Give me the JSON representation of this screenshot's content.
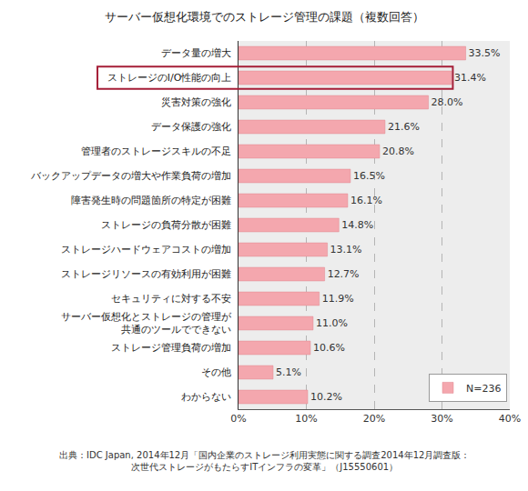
{
  "chart_data": {
    "type": "bar",
    "orientation": "horizontal",
    "title": "サーバー仮想化環境でのストレージ管理の課題（複数回答）",
    "categories": [
      "データ量の増大",
      "ストレージのI/O性能の向上",
      "災害対策の強化",
      "データ保護の強化",
      "管理者のストレージスキルの不足",
      "バックアップデータの増大や作業負荷の増加",
      "障害発生時の問題箇所の特定が困難",
      "ストレージの負荷分散が困難",
      "ストレージハードウェアコストの増加",
      "ストレージリソースの有効利用が困難",
      "セキュリティに対する不安",
      "サーバー仮想化とストレージの管理が\n共通のツールでできない",
      "ストレージ管理負荷の増加",
      "その他",
      "わからない"
    ],
    "series": [
      {
        "name": "N=236",
        "color": "#f4a7ae",
        "values": [
          33.5,
          31.4,
          28.0,
          21.6,
          20.8,
          16.5,
          16.1,
          14.8,
          13.1,
          12.7,
          11.9,
          11.0,
          10.6,
          5.1,
          10.2
        ],
        "value_labels": [
          "33.5%",
          "31.4%",
          "28.0%",
          "21.6%",
          "20.8%",
          "16.5%",
          "16.1%",
          "14.8%",
          "13.1%",
          "12.7%",
          "11.9%",
          "11.0%",
          "10.6%",
          "5.1%",
          "10.2%"
        ]
      }
    ],
    "xlim": [
      0,
      40
    ],
    "xticks": [
      {
        "value": 0,
        "label": "0%"
      },
      {
        "value": 10,
        "label": "10%"
      },
      {
        "value": 20,
        "label": "20%"
      },
      {
        "value": 30,
        "label": "30%"
      },
      {
        "value": 40,
        "label": "40%"
      }
    ],
    "grid": true,
    "legend": "lower right",
    "data_labels": true,
    "annotations": [
      "出典：IDC Japan, 2014年12月「国内企業のストレージ利用実態に関する調査2014年12月調査版：",
      "次世代ストレージがもたらすITインフラの変革」（J15550601）"
    ]
  }
}
